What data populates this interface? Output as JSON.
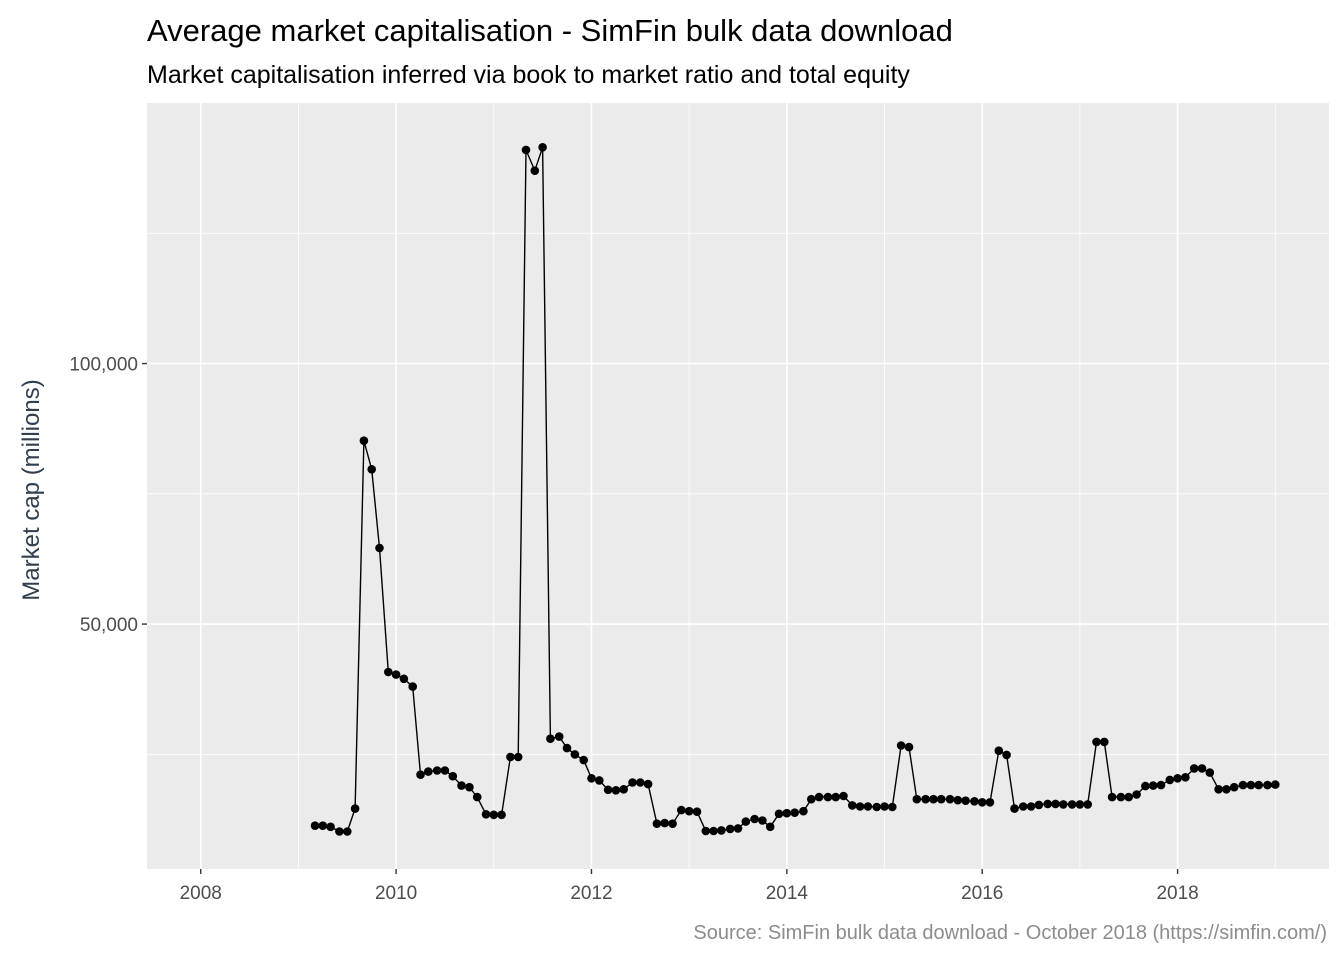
{
  "chart_data": {
    "type": "line",
    "title": "Average market capitalisation - SimFin bulk data download",
    "subtitle": "Market capitalisation inferred via book to market ratio and total equity",
    "caption": "Source: SimFin bulk data download - October 2018 (https://simfin.com/)",
    "xlabel": "",
    "ylabel": "Market cap (millions)",
    "x_ticks": [
      2008,
      2010,
      2012,
      2014,
      2016,
      2018
    ],
    "y_ticks": [
      50000,
      100000
    ],
    "y_tick_labels": [
      "50,000",
      "100,000"
    ],
    "xlim": [
      2007.45,
      2019.55
    ],
    "ylim": [
      3000,
      150000
    ],
    "grid": true,
    "colors": {
      "panel": "#ebebeb",
      "grid": "#ffffff",
      "line": "#000000",
      "points": "#000000"
    },
    "series": [
      {
        "x": [
          2009.17,
          2009.25,
          2009.33,
          2009.42,
          2009.5,
          2009.58,
          2009.67,
          2009.75,
          2009.83,
          2009.92,
          2010.0,
          2010.08,
          2010.17,
          2010.25,
          2010.33,
          2010.42,
          2010.5,
          2010.58,
          2010.67,
          2010.75,
          2010.83,
          2010.92,
          2011.0,
          2011.08,
          2011.17,
          2011.25,
          2011.33,
          2011.42,
          2011.5,
          2011.58,
          2011.67,
          2011.75,
          2011.83,
          2011.92,
          2012.0,
          2012.08,
          2012.17,
          2012.25,
          2012.33,
          2012.42,
          2012.5,
          2012.58,
          2012.67,
          2012.75,
          2012.83,
          2012.92,
          2013.0,
          2013.08,
          2013.17,
          2013.25,
          2013.33,
          2013.42,
          2013.5,
          2013.58,
          2013.67,
          2013.75,
          2013.83,
          2013.92,
          2014.0,
          2014.08,
          2014.17,
          2014.25,
          2014.33,
          2014.42,
          2014.5,
          2014.58,
          2014.67,
          2014.75,
          2014.83,
          2014.92,
          2015.0,
          2015.08,
          2015.17,
          2015.25,
          2015.33,
          2015.42,
          2015.5,
          2015.58,
          2015.67,
          2015.75,
          2015.83,
          2015.92,
          2016.0,
          2016.08,
          2016.17,
          2016.25,
          2016.33,
          2016.42,
          2016.5,
          2016.58,
          2016.67,
          2016.75,
          2016.83,
          2016.92,
          2017.0,
          2017.08,
          2017.17,
          2017.25,
          2017.33,
          2017.42,
          2017.5,
          2017.58,
          2017.67,
          2017.75,
          2017.83,
          2017.92,
          2018.0,
          2018.08,
          2018.17,
          2018.25,
          2018.33,
          2018.42,
          2018.5,
          2018.58,
          2018.67,
          2018.75,
          2018.83,
          2018.92,
          2019.0
        ],
        "values": [
          11300,
          11300,
          11100,
          10200,
          10200,
          14600,
          85200,
          79700,
          64600,
          40800,
          40300,
          39500,
          38000,
          21100,
          21700,
          21900,
          21900,
          20800,
          19000,
          18700,
          16800,
          13500,
          13400,
          13400,
          24500,
          24500,
          141000,
          137000,
          141500,
          28000,
          28400,
          26200,
          25000,
          23900,
          20400,
          20000,
          18200,
          18100,
          18300,
          19600,
          19600,
          19300,
          11700,
          11800,
          11700,
          14300,
          14100,
          14000,
          10300,
          10300,
          10400,
          10700,
          10800,
          12100,
          12600,
          12300,
          11100,
          13600,
          13700,
          13800,
          14100,
          16400,
          16800,
          16800,
          16800,
          17000,
          15200,
          15000,
          15000,
          14900,
          15000,
          14900,
          26700,
          26400,
          16400,
          16400,
          16400,
          16400,
          16400,
          16200,
          16100,
          16000,
          15800,
          15800,
          25700,
          24900,
          14600,
          15000,
          15000,
          15300,
          15500,
          15500,
          15400,
          15400,
          15400,
          15400,
          27400,
          27400,
          16800,
          16800,
          16800,
          17300,
          18900,
          19000,
          19100,
          20100,
          20400,
          20600,
          22300,
          22300,
          21500,
          18300,
          18300,
          18700,
          19100,
          19100,
          19100,
          19100,
          19200
        ]
      }
    ]
  }
}
